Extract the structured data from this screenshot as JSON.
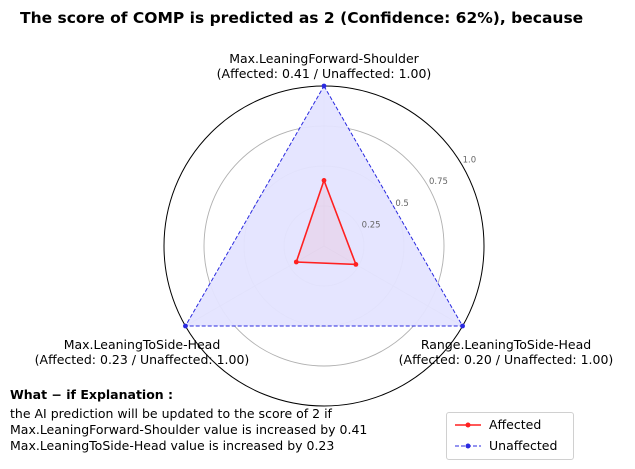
{
  "chart_data": {
    "type": "radar",
    "title": "The score of COMP is predicted as 2 (Confidence: 62%), because",
    "axes": [
      {
        "name": "Max.LeaningForward-Shoulder",
        "caption": "(Affected: 0.41 / Unaffected: 1.00)"
      },
      {
        "name": "Max.LeaningToSide-Head",
        "caption": "(Affected: 0.23 / Unaffected: 1.00)"
      },
      {
        "name": "Range.LeaningToSide-Head",
        "caption": "(Affected: 0.20 / Unaffected: 1.00)"
      }
    ],
    "rlim": [
      0,
      1.0
    ],
    "rticks": [
      "0.25",
      "0.5",
      "0.75",
      "1.0"
    ],
    "rtick_values": [
      0.25,
      0.5,
      0.75,
      1.0
    ],
    "series": [
      {
        "name": "Affected",
        "values": [
          0.41,
          0.23,
          0.2
        ],
        "color": "#ff2020",
        "line": "solid"
      },
      {
        "name": "Unaffected",
        "values": [
          1.0,
          1.0,
          1.0
        ],
        "color": "#2a2ae0",
        "line": "dashed",
        "fill": "#e4e4ff"
      }
    ],
    "legend": {
      "placement": "bottom-right"
    },
    "grid": true
  },
  "explanation": {
    "title": "What − if Explanation :",
    "lines": [
      "the AI prediction will be updated to the score of 2 if",
      "Max.LeaningForward-Shoulder value is increased by 0.41",
      "Max.LeaningToSide-Head value is increased by 0.23"
    ]
  }
}
